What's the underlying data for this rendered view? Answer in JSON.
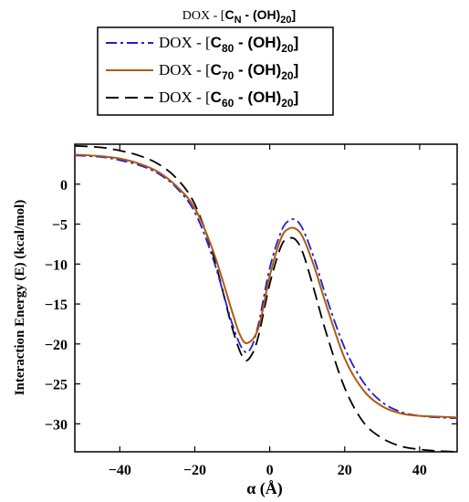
{
  "chart_data": {
    "type": "line",
    "title": "DOX - [C_N - (OH)_20]",
    "title_parts": {
      "pre": "DOX - [",
      "c": "C",
      "sub": "N",
      "mid": " - (OH)",
      "sub2": "20",
      "post": "]"
    },
    "xlabel": "α (Å)",
    "ylabel": "Interaction Energy (E) (kcal/mol)",
    "xlim": [
      -52,
      50
    ],
    "ylim": [
      -33.5,
      5
    ],
    "xticks": [
      -40,
      -20,
      0,
      20,
      40
    ],
    "yticks": [
      0,
      -5,
      -10,
      -15,
      -20,
      -25,
      -30
    ],
    "xtick_labels": [
      "−40",
      "−20",
      "0",
      "20",
      "40"
    ],
    "ytick_labels": [
      "0",
      "−5",
      "−10",
      "−15",
      "−20",
      "−25",
      "−30"
    ],
    "grid": false,
    "legend_position": "top-center",
    "series": [
      {
        "name": "DOX - [C80 - (OH)20]",
        "label_parts": {
          "pre": "DOX - [",
          "c": "C",
          "sub": "80",
          "mid": " - (OH)",
          "sub2": "20",
          "post": "]"
        },
        "color": "#2020cc",
        "dash": "12,4,3,4",
        "x": [
          -52,
          -45,
          -40,
          -35,
          -30,
          -25,
          -20,
          -15,
          -10,
          -7,
          -5,
          -3,
          0,
          3,
          5,
          7,
          9,
          12,
          15,
          20,
          25,
          30,
          35,
          40,
          45,
          50
        ],
        "y": [
          3.6,
          3.4,
          3.0,
          2.4,
          1.4,
          -0.4,
          -3.5,
          -9.5,
          -17.5,
          -20.8,
          -20.5,
          -17.5,
          -10.5,
          -6.0,
          -4.6,
          -4.5,
          -5.8,
          -9.5,
          -14.0,
          -20.5,
          -24.8,
          -27.3,
          -28.5,
          -29.0,
          -29.2,
          -29.3
        ]
      },
      {
        "name": "DOX - [C70 - (OH)20]",
        "label_parts": {
          "pre": "DOX - [",
          "c": "C",
          "sub": "70",
          "mid": " - (OH)",
          "sub2": "20",
          "post": "]"
        },
        "color": "#b05a10",
        "dash": "",
        "x": [
          -52,
          -45,
          -40,
          -35,
          -30,
          -25,
          -20,
          -15,
          -10,
          -8,
          -6,
          -3,
          0,
          3,
          5,
          7,
          9,
          12,
          15,
          20,
          25,
          30,
          35,
          40,
          45,
          50
        ],
        "y": [
          3.7,
          3.5,
          3.2,
          2.6,
          1.6,
          -0.2,
          -3.0,
          -8.5,
          -16.0,
          -18.8,
          -19.9,
          -18.0,
          -11.5,
          -6.8,
          -5.6,
          -5.6,
          -6.8,
          -10.5,
          -15.0,
          -21.8,
          -25.8,
          -27.8,
          -28.7,
          -29.0,
          -29.1,
          -29.2
        ]
      },
      {
        "name": "DOX - [C60 - (OH)20]",
        "label_parts": {
          "pre": "DOX - [",
          "c": "C",
          "sub": "60",
          "mid": " - (OH)",
          "sub2": "20",
          "post": "]"
        },
        "color": "#000000",
        "dash": "14,7",
        "x": [
          -52,
          -45,
          -40,
          -35,
          -30,
          -25,
          -20,
          -15,
          -10,
          -7,
          -5,
          -3,
          0,
          3,
          5,
          7,
          9,
          12,
          15,
          20,
          25,
          30,
          35,
          40,
          45,
          50
        ],
        "y": [
          4.8,
          4.6,
          4.2,
          3.6,
          2.6,
          0.8,
          -2.5,
          -9.0,
          -18.0,
          -21.8,
          -21.5,
          -19.0,
          -12.5,
          -7.8,
          -6.8,
          -7.0,
          -8.8,
          -13.5,
          -18.5,
          -25.5,
          -29.8,
          -31.8,
          -32.8,
          -33.2,
          -33.4,
          -33.5
        ]
      }
    ]
  }
}
